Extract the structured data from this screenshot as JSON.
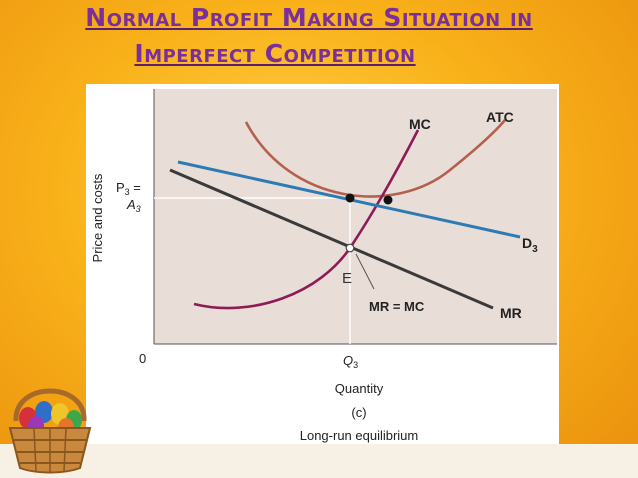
{
  "slide": {
    "title_line1": "Normal Profit Making Situation in",
    "title_line2": "Imperfect Competition"
  },
  "diagram": {
    "y_axis_label": "Price and costs",
    "origin_label": "0",
    "price_label_line1": "P",
    "price_label_line1_sub": "3",
    "price_label_line1_suffix": " =",
    "price_label_line2": "A",
    "price_label_line2_sub": "3",
    "q_label": "Q",
    "q_label_sub": "3",
    "x_axis_label": "Quantity",
    "panel_label": "(c)",
    "caption": "Long-run equilibrium",
    "curve_mc": "MC",
    "curve_atc": "ATC",
    "curve_d": "D",
    "curve_d_sub": "3",
    "curve_mr": "MR",
    "point_e": "E",
    "mr_eq_mc": "MR = MC",
    "colors": {
      "mc": "#8e1b56",
      "atc": "#b4604f",
      "demand": "#2d7bb4",
      "mr": "#3a3a3a",
      "plot_bg": "#e9ddd7",
      "title": "#7a2f9a"
    }
  }
}
